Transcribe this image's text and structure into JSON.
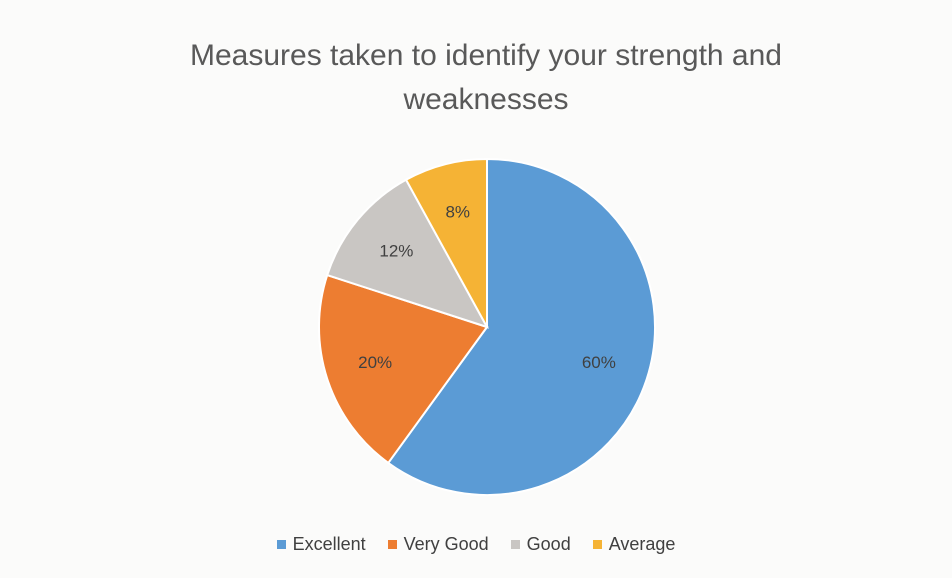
{
  "chart_data": {
    "type": "pie",
    "title": "Measures taken to identify your strength and weaknesses",
    "categories": [
      "Excellent",
      "Very Good",
      "Good",
      "Average"
    ],
    "values": [
      60,
      20,
      12,
      8
    ],
    "value_labels": [
      "60%",
      "20%",
      "12%",
      "8%"
    ],
    "colors": [
      "#5b9bd5",
      "#ed7d31",
      "#c9c6c3",
      "#f5b335"
    ],
    "legend": "bottom"
  }
}
